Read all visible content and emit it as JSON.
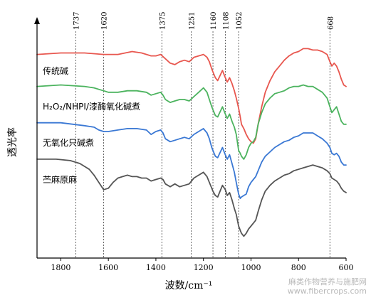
{
  "chart_data": {
    "type": "line",
    "title": "",
    "xlabel": "波数/cm⁻¹",
    "ylabel": "透光率",
    "xlim": [
      1900,
      600
    ],
    "x_reversed": true,
    "grid": false,
    "x_ticks": [
      1800,
      1600,
      1400,
      1200,
      1000,
      800,
      600
    ],
    "x_tick_labels": [
      "1800",
      "1600",
      "1400",
      "1200",
      "1000",
      "800",
      "600"
    ],
    "reference_lines": [
      {
        "x": 1737,
        "label": "1737"
      },
      {
        "x": 1620,
        "label": "1620"
      },
      {
        "x": 1375,
        "label": "1375"
      },
      {
        "x": 1251,
        "label": "1251"
      },
      {
        "x": 1160,
        "label": "1160"
      },
      {
        "x": 1108,
        "label": "1108"
      },
      {
        "x": 1052,
        "label": "1052"
      },
      {
        "x": 668,
        "label": "668"
      }
    ],
    "y_unit": "arbitrary (stacked offsets)",
    "series": [
      {
        "name": "传统碱",
        "color": "#e8574f",
        "points": [
          [
            1900,
            88
          ],
          [
            1800,
            89
          ],
          [
            1700,
            89
          ],
          [
            1620,
            88
          ],
          [
            1560,
            88
          ],
          [
            1500,
            90
          ],
          [
            1460,
            89
          ],
          [
            1420,
            87
          ],
          [
            1400,
            87
          ],
          [
            1380,
            88
          ],
          [
            1360,
            85
          ],
          [
            1340,
            82
          ],
          [
            1320,
            81
          ],
          [
            1300,
            83
          ],
          [
            1280,
            84
          ],
          [
            1260,
            83
          ],
          [
            1240,
            86
          ],
          [
            1220,
            87
          ],
          [
            1200,
            88
          ],
          [
            1185,
            86
          ],
          [
            1175,
            83
          ],
          [
            1165,
            78
          ],
          [
            1160,
            76
          ],
          [
            1150,
            72
          ],
          [
            1140,
            70
          ],
          [
            1120,
            77
          ],
          [
            1108,
            72
          ],
          [
            1100,
            69
          ],
          [
            1090,
            72
          ],
          [
            1080,
            68
          ],
          [
            1070,
            63
          ],
          [
            1062,
            58
          ],
          [
            1052,
            51
          ],
          [
            1045,
            45
          ],
          [
            1040,
            40
          ],
          [
            1030,
            37
          ],
          [
            1020,
            33
          ],
          [
            1010,
            30
          ],
          [
            1000,
            28
          ],
          [
            990,
            27
          ],
          [
            980,
            30
          ],
          [
            970,
            40
          ],
          [
            955,
            52
          ],
          [
            940,
            62
          ],
          [
            920,
            70
          ],
          [
            900,
            76
          ],
          [
            880,
            80
          ],
          [
            860,
            84
          ],
          [
            840,
            87
          ],
          [
            820,
            89
          ],
          [
            800,
            90
          ],
          [
            780,
            92
          ],
          [
            760,
            92
          ],
          [
            740,
            91
          ],
          [
            720,
            91
          ],
          [
            700,
            90
          ],
          [
            680,
            88
          ],
          [
            668,
            83
          ],
          [
            660,
            80
          ],
          [
            650,
            82
          ],
          [
            640,
            80
          ],
          [
            630,
            76
          ],
          [
            620,
            71
          ],
          [
            610,
            67
          ],
          [
            600,
            66
          ]
        ]
      },
      {
        "name": "H₂O₂/NHPI/漆酶氧化碱煮",
        "color": "#4bb35e",
        "points": [
          [
            1900,
            66
          ],
          [
            1800,
            67
          ],
          [
            1700,
            66
          ],
          [
            1660,
            65
          ],
          [
            1640,
            64
          ],
          [
            1620,
            63
          ],
          [
            1600,
            62
          ],
          [
            1560,
            62
          ],
          [
            1520,
            63
          ],
          [
            1480,
            63
          ],
          [
            1440,
            62
          ],
          [
            1420,
            60
          ],
          [
            1400,
            61
          ],
          [
            1380,
            62
          ],
          [
            1370,
            60
          ],
          [
            1360,
            57
          ],
          [
            1340,
            55
          ],
          [
            1320,
            56
          ],
          [
            1300,
            57
          ],
          [
            1280,
            57
          ],
          [
            1260,
            56
          ],
          [
            1240,
            59
          ],
          [
            1220,
            62
          ],
          [
            1200,
            65
          ],
          [
            1185,
            62
          ],
          [
            1175,
            57
          ],
          [
            1165,
            52
          ],
          [
            1160,
            50
          ],
          [
            1150,
            46
          ],
          [
            1140,
            45
          ],
          [
            1120,
            52
          ],
          [
            1108,
            47
          ],
          [
            1100,
            44
          ],
          [
            1090,
            47
          ],
          [
            1080,
            42
          ],
          [
            1070,
            38
          ],
          [
            1062,
            33
          ],
          [
            1052,
            22
          ],
          [
            1045,
            20
          ],
          [
            1040,
            18
          ],
          [
            1030,
            16
          ],
          [
            1020,
            19
          ],
          [
            1010,
            24
          ],
          [
            1000,
            27
          ],
          [
            990,
            28
          ],
          [
            980,
            31
          ],
          [
            970,
            40
          ],
          [
            955,
            48
          ],
          [
            940,
            54
          ],
          [
            920,
            58
          ],
          [
            900,
            61
          ],
          [
            880,
            62
          ],
          [
            860,
            63
          ],
          [
            840,
            65
          ],
          [
            820,
            66
          ],
          [
            800,
            66
          ],
          [
            780,
            67
          ],
          [
            760,
            66
          ],
          [
            740,
            66
          ],
          [
            720,
            64
          ],
          [
            700,
            62
          ],
          [
            680,
            58
          ],
          [
            668,
            52
          ],
          [
            660,
            48
          ],
          [
            650,
            50
          ],
          [
            640,
            52
          ],
          [
            630,
            47
          ],
          [
            620,
            42
          ],
          [
            610,
            40
          ],
          [
            600,
            40
          ]
        ]
      },
      {
        "name": "无氧化只碱煮",
        "color": "#3a78d4",
        "points": [
          [
            1900,
            41
          ],
          [
            1800,
            41
          ],
          [
            1700,
            39
          ],
          [
            1660,
            38
          ],
          [
            1640,
            36
          ],
          [
            1620,
            35
          ],
          [
            1600,
            35
          ],
          [
            1560,
            36
          ],
          [
            1520,
            37
          ],
          [
            1480,
            37
          ],
          [
            1440,
            36
          ],
          [
            1420,
            33
          ],
          [
            1400,
            35
          ],
          [
            1380,
            36
          ],
          [
            1370,
            34
          ],
          [
            1360,
            30
          ],
          [
            1340,
            28
          ],
          [
            1320,
            29
          ],
          [
            1300,
            30
          ],
          [
            1280,
            31
          ],
          [
            1260,
            30
          ],
          [
            1240,
            33
          ],
          [
            1220,
            35
          ],
          [
            1200,
            37
          ],
          [
            1185,
            34
          ],
          [
            1175,
            30
          ],
          [
            1165,
            24
          ],
          [
            1160,
            22
          ],
          [
            1150,
            18
          ],
          [
            1140,
            17
          ],
          [
            1120,
            24
          ],
          [
            1108,
            19
          ],
          [
            1100,
            16
          ],
          [
            1090,
            19
          ],
          [
            1080,
            13
          ],
          [
            1070,
            7
          ],
          [
            1062,
            0
          ],
          [
            1052,
            -8
          ],
          [
            1045,
            -11
          ],
          [
            1040,
            -10
          ],
          [
            1030,
            -9
          ],
          [
            1020,
            -8
          ],
          [
            1010,
            -3
          ],
          [
            1000,
            0
          ],
          [
            990,
            2
          ],
          [
            980,
            4
          ],
          [
            970,
            8
          ],
          [
            955,
            14
          ],
          [
            940,
            18
          ],
          [
            920,
            21
          ],
          [
            900,
            24
          ],
          [
            880,
            26
          ],
          [
            860,
            28
          ],
          [
            840,
            29
          ],
          [
            820,
            31
          ],
          [
            800,
            32
          ],
          [
            780,
            34
          ],
          [
            760,
            34
          ],
          [
            740,
            34
          ],
          [
            720,
            32
          ],
          [
            700,
            30
          ],
          [
            680,
            27
          ],
          [
            668,
            24
          ],
          [
            660,
            20
          ],
          [
            650,
            19
          ],
          [
            640,
            20
          ],
          [
            630,
            18
          ],
          [
            620,
            14
          ],
          [
            610,
            12
          ],
          [
            600,
            12
          ]
        ]
      },
      {
        "name": "苎麻原麻",
        "color": "#555555",
        "points": [
          [
            1900,
            16
          ],
          [
            1820,
            16
          ],
          [
            1760,
            15
          ],
          [
            1720,
            13
          ],
          [
            1700,
            11
          ],
          [
            1680,
            9
          ],
          [
            1660,
            5
          ],
          [
            1640,
            0
          ],
          [
            1620,
            -5
          ],
          [
            1600,
            -4
          ],
          [
            1580,
            0
          ],
          [
            1560,
            3
          ],
          [
            1540,
            4
          ],
          [
            1520,
            5
          ],
          [
            1500,
            4
          ],
          [
            1480,
            4
          ],
          [
            1460,
            3
          ],
          [
            1440,
            3
          ],
          [
            1420,
            1
          ],
          [
            1400,
            2
          ],
          [
            1380,
            3
          ],
          [
            1370,
            2
          ],
          [
            1360,
            -1
          ],
          [
            1340,
            -3
          ],
          [
            1320,
            -1
          ],
          [
            1300,
            -3
          ],
          [
            1280,
            -2
          ],
          [
            1260,
            -1
          ],
          [
            1240,
            3
          ],
          [
            1220,
            5
          ],
          [
            1200,
            7
          ],
          [
            1185,
            4
          ],
          [
            1175,
            0
          ],
          [
            1165,
            -4
          ],
          [
            1160,
            -6
          ],
          [
            1150,
            -9
          ],
          [
            1140,
            -10
          ],
          [
            1120,
            -2
          ],
          [
            1108,
            -5
          ],
          [
            1100,
            -9
          ],
          [
            1090,
            -7
          ],
          [
            1080,
            -12
          ],
          [
            1070,
            -18
          ],
          [
            1062,
            -22
          ],
          [
            1052,
            -30
          ],
          [
            1045,
            -33
          ],
          [
            1040,
            -35
          ],
          [
            1030,
            -37
          ],
          [
            1020,
            -35
          ],
          [
            1010,
            -32
          ],
          [
            1000,
            -30
          ],
          [
            990,
            -28
          ],
          [
            980,
            -26
          ],
          [
            970,
            -20
          ],
          [
            955,
            -12
          ],
          [
            940,
            -6
          ],
          [
            920,
            -2
          ],
          [
            900,
            1
          ],
          [
            880,
            3
          ],
          [
            860,
            5
          ],
          [
            840,
            6
          ],
          [
            820,
            8
          ],
          [
            800,
            9
          ],
          [
            780,
            10
          ],
          [
            760,
            11
          ],
          [
            740,
            12
          ],
          [
            720,
            11
          ],
          [
            700,
            10
          ],
          [
            680,
            8
          ],
          [
            668,
            6
          ],
          [
            660,
            3
          ],
          [
            650,
            2
          ],
          [
            640,
            1
          ],
          [
            630,
            -1
          ],
          [
            620,
            -4
          ],
          [
            610,
            -6
          ],
          [
            600,
            -7
          ]
        ]
      }
    ],
    "series_labels_shown": [
      "传统碱",
      "H₂O₂/NHPI/漆酶氧化碱煮",
      "无氧化只碱煮",
      "苎麻原麻"
    ]
  },
  "watermark": {
    "line1": "麻类作物营养与施肥网",
    "line2": "www.fibercrops.com"
  }
}
